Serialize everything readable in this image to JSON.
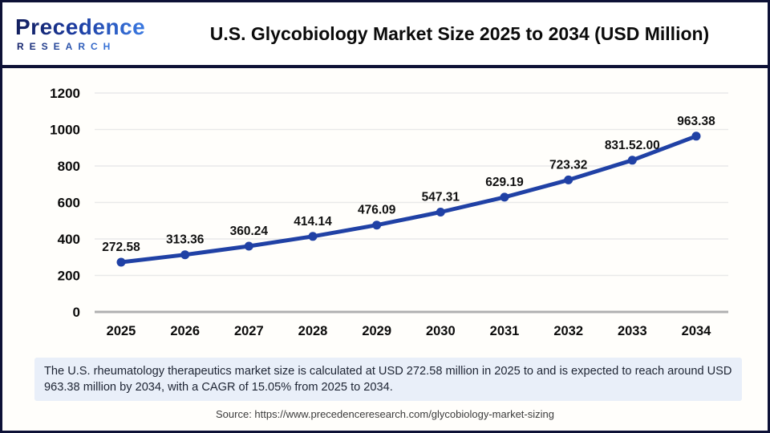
{
  "header": {
    "logo_line1": "Precedence",
    "logo_line2": "RESEARCH",
    "title": "U.S. Glycobiology Market Size 2025 to 2034 (USD Million)"
  },
  "chart_data": {
    "type": "line",
    "title": "U.S. Glycobiology Market Size 2025 to 2034 (USD Million)",
    "categories": [
      "2025",
      "2026",
      "2027",
      "2028",
      "2029",
      "2030",
      "2031",
      "2032",
      "2033",
      "2034"
    ],
    "values": [
      272.58,
      313.36,
      360.24,
      414.14,
      476.09,
      547.31,
      629.19,
      723.32,
      831.52,
      963.38
    ],
    "point_labels": [
      "272.58",
      "313.36",
      "360.24",
      "414.14",
      "476.09",
      "547.31",
      "629.19",
      "723.32",
      "831.52.00",
      "963.38"
    ],
    "xlabel": "",
    "ylabel": "",
    "ylim": [
      0,
      1200
    ],
    "ytick_step": 200,
    "grid": true,
    "legend_position": "none",
    "line_color": "#2041a5",
    "marker_color": "#2041a5",
    "gridline_color": "#e9e9e9",
    "baseline_color": "#b0b0b0",
    "label_color": "#111111"
  },
  "footer": {
    "note": "The U.S. rheumatology therapeutics market size is calculated at USD 272.58 million in 2025 to and is expected to reach around USD 963.38 million by 2034, with a CAGR of 15.05% from 2025 to 2034.",
    "source": "Source: https://www.precedenceresearch.com/glycobiology-market-sizing"
  },
  "colors": {
    "frame_border": "#0d1136",
    "note_background": "#e9eff9",
    "header_background": "#ffffff"
  }
}
